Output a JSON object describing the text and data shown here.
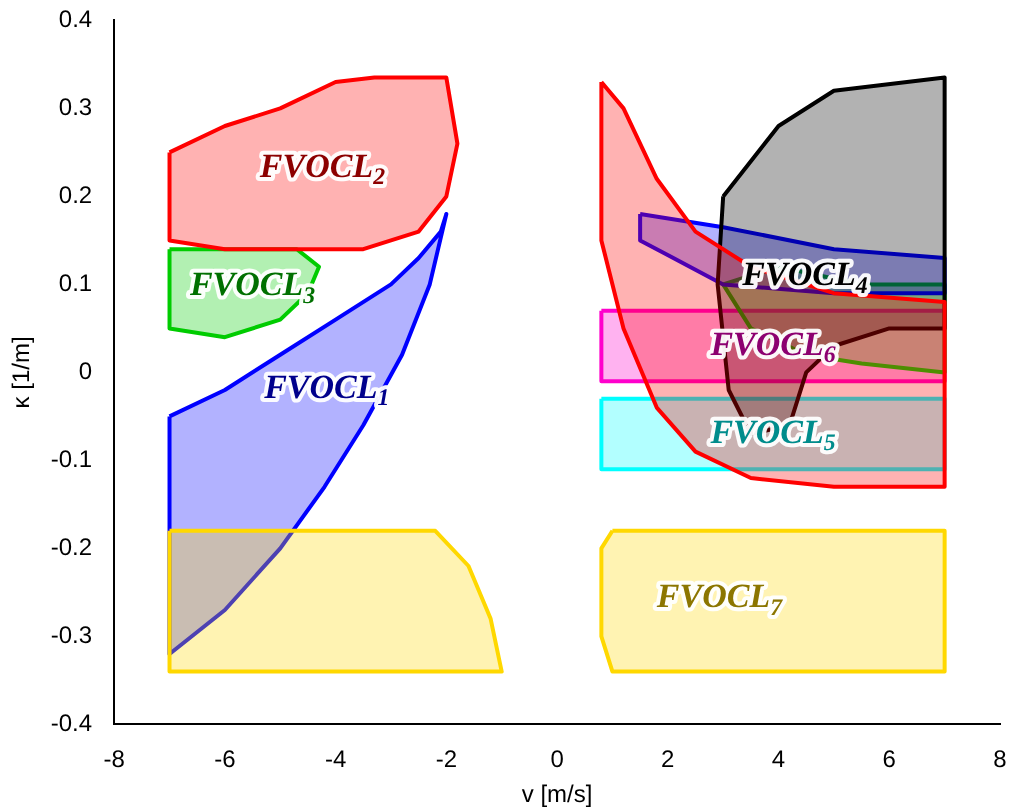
{
  "chart_data": {
    "type": "area",
    "xlabel": "v [m/s]",
    "ylabel": "κ [1/m]",
    "xlim": [
      -8,
      8
    ],
    "xticks": [
      -8,
      -6,
      -4,
      -2,
      0,
      2,
      4,
      6,
      8
    ],
    "ylim": [
      -0.4,
      0.4
    ],
    "yticks": [
      -0.4,
      -0.3,
      -0.2,
      -0.1,
      0,
      0.1,
      0.2,
      0.3,
      0.4
    ],
    "grid": false,
    "legend": false,
    "series": [
      {
        "color": "#ffd800",
        "x": [
          -7,
          -2.2,
          -1.6,
          -1.2,
          -1,
          -7
        ],
        "values": [
          -0.18,
          -0.18,
          -0.22,
          -0.28,
          -0.34,
          -0.34
        ]
      },
      {
        "name": "FVOCL$_{7}$",
        "color": "#ffd800",
        "x": [
          1,
          7,
          7,
          1,
          0.8,
          0.8
        ],
        "values": [
          -0.18,
          -0.18,
          -0.34,
          -0.34,
          -0.3,
          -0.2
        ]
      },
      {
        "name": "FVOCL$_{1}$",
        "color": "#0000ff",
        "x": [
          -7,
          -6,
          -5,
          -4,
          -3,
          -2.5,
          -2.1,
          -2,
          -2.3,
          -2.8,
          -3.5,
          -4.2,
          -5,
          -6,
          -7
        ],
        "values": [
          -0.05,
          -0.02,
          0.02,
          0.06,
          0.1,
          0.13,
          0.16,
          0.18,
          0.1,
          0.02,
          -0.06,
          -0.13,
          -0.2,
          -0.27,
          -0.32
        ]
      },
      {
        "name": "FVOCL$_{2}$",
        "color": "#ff0000",
        "x": [
          -7,
          -6,
          -5,
          -4,
          -3.3,
          -2,
          -1.8,
          -2,
          -2.5,
          -3.5,
          -5,
          -6,
          -7
        ],
        "values": [
          0.25,
          0.28,
          0.3,
          0.33,
          0.335,
          0.335,
          0.26,
          0.2,
          0.16,
          0.14,
          0.14,
          0.14,
          0.15
        ]
      },
      {
        "name": "FVOCL$_{3}$",
        "color": "#00cc00",
        "x": [
          -7,
          -5.5,
          -4.7,
          -4.3,
          -4.5,
          -5,
          -6,
          -7
        ],
        "values": [
          0.14,
          0.14,
          0.14,
          0.12,
          0.09,
          0.06,
          0.04,
          0.05
        ]
      },
      {
        "color": "#ff0000",
        "x": [
          0.8,
          1.2,
          1.8,
          2.5,
          3.5,
          5,
          7,
          7,
          5,
          3.5,
          2.5,
          1.8,
          1.2,
          0.8
        ],
        "values": [
          0.33,
          0.3,
          0.22,
          0.16,
          0.12,
          0.09,
          0.08,
          -0.13,
          -0.13,
          -0.12,
          -0.09,
          -0.04,
          0.05,
          0.15
        ]
      },
      {
        "name": "FVOCL$_{4}$",
        "color": "#000000",
        "x": [
          3,
          4,
          5,
          7,
          7,
          6,
          5,
          4.5,
          4.2,
          3.5,
          3.1,
          2.9,
          3
        ],
        "values": [
          0.2,
          0.28,
          0.32,
          0.335,
          0.05,
          0.05,
          0.03,
          0,
          -0.06,
          -0.07,
          -0.02,
          0.1,
          0.2
        ]
      },
      {
        "color": "#0000ff",
        "x": [
          1.5,
          3,
          5,
          7,
          7,
          5,
          3,
          1.5
        ],
        "values": [
          0.18,
          0.165,
          0.14,
          0.13,
          0.09,
          0.09,
          0.1,
          0.15
        ]
      },
      {
        "color": "#00cc00",
        "x": [
          3,
          3.5,
          4.5,
          5.5,
          7,
          7,
          5.5,
          4
        ],
        "values": [
          0.1,
          0.05,
          0.02,
          0.01,
          0,
          0.1,
          0.1,
          0.12
        ]
      },
      {
        "name": "FVOCL$_{6}$",
        "color": "#ff00cc",
        "x": [
          0.8,
          7,
          7,
          0.8
        ],
        "values": [
          0.07,
          0.07,
          -0.01,
          -0.01
        ]
      },
      {
        "name": "FVOCL$_{5}$",
        "color": "#00ffff",
        "x": [
          0.8,
          7,
          7,
          0.8
        ],
        "values": [
          -0.03,
          -0.03,
          -0.11,
          -0.11
        ]
      }
    ]
  }
}
